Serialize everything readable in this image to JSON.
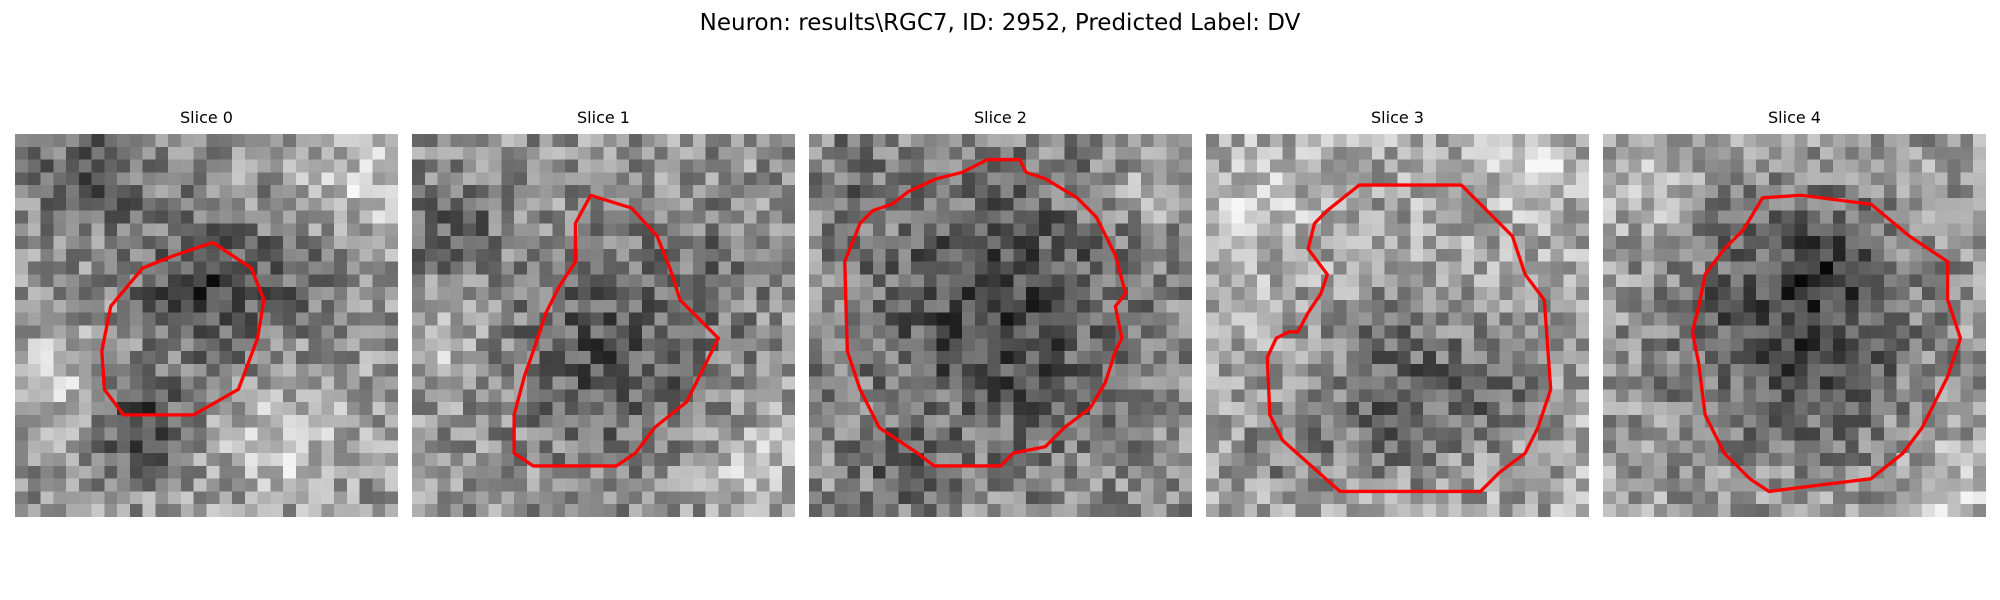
{
  "figure": {
    "title": "Neuron: results\\RGC7, ID: 2952, Predicted Label: DV",
    "panels": [
      {
        "title": "Slice 0"
      },
      {
        "title": "Slice 1"
      },
      {
        "title": "Slice 2"
      },
      {
        "title": "Slice 3"
      },
      {
        "title": "Slice 4"
      }
    ],
    "contour_color": "#ff0000",
    "colormap": "grayscale"
  }
}
